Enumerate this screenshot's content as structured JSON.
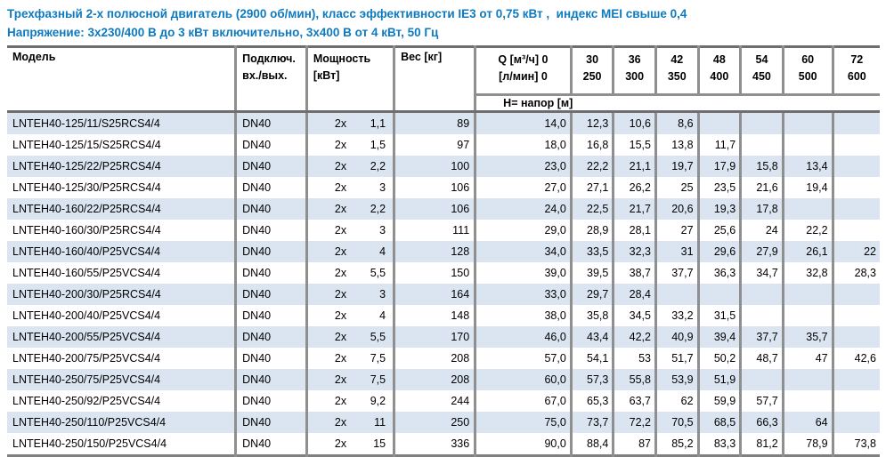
{
  "page": {
    "title_line1": "Трехфазный 2-х полюсной двигатель (2900 об/мин), класс эффективности IE3 от 0,75 кВт ,  индекс MEI свыше 0,4",
    "title_line2": "Напряжение: 3x230/400 В до 3 кВт включительно, 3x400 В от 4 кВт, 50 Гц",
    "title_color": "#0e7ac0"
  },
  "colors": {
    "row_alternate": "#dbe5f1",
    "border_gray": "#8f8f8f",
    "heavy_border_gray": "#6e6e6e"
  },
  "table": {
    "headers": {
      "model": "Модель",
      "connection_line1": "Подключ.",
      "connection_line2": "вх./вых.",
      "power_line1": "Мощность",
      "power_line2": "[кВт]",
      "weight": "Вес [кг]",
      "q_line1": "Q [м³/ч] 0",
      "q_line2": "[л/мин] 0",
      "head_row_label": "Н= напор [м]"
    },
    "q_columns": [
      {
        "m3h": "30",
        "lmin": "250"
      },
      {
        "m3h": "36",
        "lmin": "300"
      },
      {
        "m3h": "42",
        "lmin": "350"
      },
      {
        "m3h": "48",
        "lmin": "400"
      },
      {
        "m3h": "54",
        "lmin": "450"
      },
      {
        "m3h": "60",
        "lmin": "500"
      },
      {
        "m3h": "72",
        "lmin": "600"
      }
    ],
    "power_prefix": "2x",
    "rows": [
      {
        "model": "LNTEH40-125/11/S25RCS4/4",
        "dn": "DN40",
        "power": "1,1",
        "weight": "89",
        "h": [
          "14,0",
          "12,3",
          "10,6",
          "8,6",
          "",
          "",
          "",
          ""
        ]
      },
      {
        "model": "LNTEH40-125/15/S25RCS4/4",
        "dn": "DN40",
        "power": "1,5",
        "weight": "97",
        "h": [
          "18,0",
          "16,8",
          "15,5",
          "13,8",
          "11,7",
          "",
          "",
          ""
        ]
      },
      {
        "model": "LNTEH40-125/22/P25RCS4/4",
        "dn": "DN40",
        "power": "2,2",
        "weight": "100",
        "h": [
          "23,0",
          "22,2",
          "21,1",
          "19,7",
          "17,9",
          "15,8",
          "13,4",
          ""
        ]
      },
      {
        "model": "LNTEH40-125/30/P25RCS4/4",
        "dn": "DN40",
        "power": "3",
        "weight": "106",
        "h": [
          "27,0",
          "27,1",
          "26,2",
          "25",
          "23,5",
          "21,6",
          "19,4",
          ""
        ]
      },
      {
        "model": "LNTEH40-160/22/P25RCS4/4",
        "dn": "DN40",
        "power": "2,2",
        "weight": "106",
        "h": [
          "24,0",
          "22,5",
          "21,7",
          "20,6",
          "19,3",
          "17,8",
          "",
          ""
        ]
      },
      {
        "model": "LNTEH40-160/30/P25RCS4/4",
        "dn": "DN40",
        "power": "3",
        "weight": "111",
        "h": [
          "29,0",
          "28,9",
          "28,1",
          "27",
          "25,6",
          "24",
          "22,2",
          ""
        ]
      },
      {
        "model": "LNTEH40-160/40/P25VCS4/4",
        "dn": "DN40",
        "power": "4",
        "weight": "128",
        "h": [
          "34,0",
          "33,5",
          "32,3",
          "31",
          "29,6",
          "27,9",
          "26,1",
          "22"
        ]
      },
      {
        "model": "LNTEH40-160/55/P25VCS4/4",
        "dn": "DN40",
        "power": "5,5",
        "weight": "150",
        "h": [
          "39,0",
          "39,5",
          "38,7",
          "37,7",
          "36,3",
          "34,7",
          "32,8",
          "28,3"
        ]
      },
      {
        "model": "LNTEH40-200/30/P25RCS4/4",
        "dn": "DN40",
        "power": "3",
        "weight": "164",
        "h": [
          "33,0",
          "29,7",
          "28,4",
          "",
          "",
          "",
          "",
          ""
        ]
      },
      {
        "model": "LNTEH40-200/40/P25VCS4/4",
        "dn": "DN40",
        "power": "4",
        "weight": "148",
        "h": [
          "38,0",
          "35,8",
          "34,5",
          "33,2",
          "31,5",
          "",
          "",
          ""
        ]
      },
      {
        "model": "LNTEH40-200/55/P25VCS4/4",
        "dn": "DN40",
        "power": "5,5",
        "weight": "170",
        "h": [
          "46,0",
          "43,4",
          "42,2",
          "40,9",
          "39,4",
          "37,7",
          "35,7",
          ""
        ]
      },
      {
        "model": "LNTEH40-200/75/P25VCS4/4",
        "dn": "DN40",
        "power": "7,5",
        "weight": "208",
        "h": [
          "57,0",
          "54,1",
          "53",
          "51,7",
          "50,2",
          "48,7",
          "47",
          "42,6"
        ]
      },
      {
        "model": "LNTEH40-250/75/P25VCS4/4",
        "dn": "DN40",
        "power": "7,5",
        "weight": "208",
        "h": [
          "60,0",
          "57,3",
          "55,8",
          "53,9",
          "51,9",
          "",
          "",
          ""
        ]
      },
      {
        "model": "LNTEH40-250/92/P25VCS4/4",
        "dn": "DN40",
        "power": "9,2",
        "weight": "244",
        "h": [
          "67,0",
          "65,3",
          "63,7",
          "62",
          "59,9",
          "57,7",
          "",
          ""
        ]
      },
      {
        "model": "LNTEH40-250/110/P25VCS4/4",
        "dn": "DN40",
        "power": "11",
        "weight": "250",
        "h": [
          "75,0",
          "73,7",
          "72,2",
          "70,5",
          "68,5",
          "66,3",
          "64",
          ""
        ]
      },
      {
        "model": "LNTEH40-250/150/P25VCS4/4",
        "dn": "DN40",
        "power": "15",
        "weight": "336",
        "h": [
          "90,0",
          "88,4",
          "87",
          "85,2",
          "83,3",
          "81,2",
          "78,9",
          "73,8"
        ]
      }
    ]
  }
}
